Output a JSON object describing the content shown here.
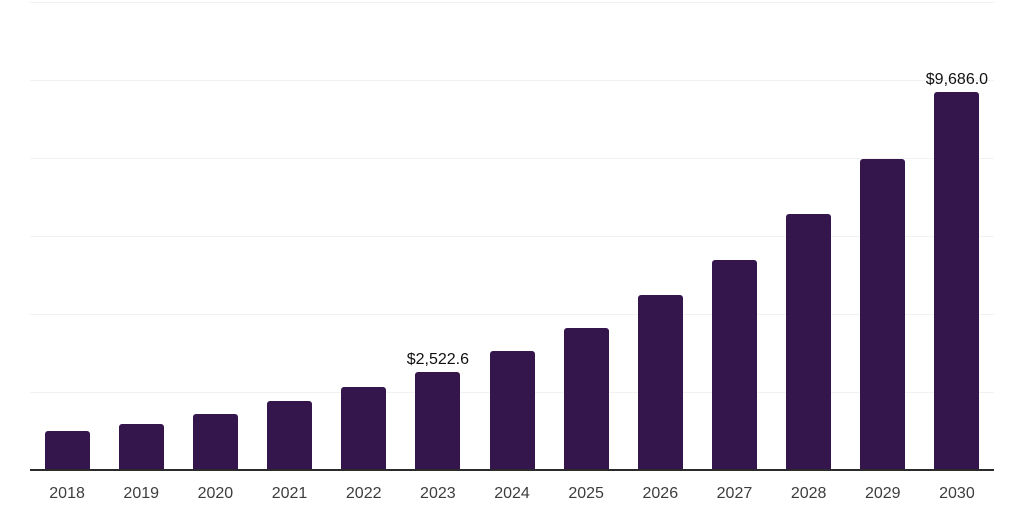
{
  "chart_data": {
    "type": "bar",
    "title": "",
    "xlabel": "",
    "ylabel": "",
    "categories": [
      "2018",
      "2019",
      "2020",
      "2021",
      "2022",
      "2023",
      "2024",
      "2025",
      "2026",
      "2027",
      "2028",
      "2029",
      "2030"
    ],
    "values": [
      1008,
      1172,
      1436,
      1777,
      2120,
      2522.6,
      3051,
      3633,
      4479,
      5384,
      6564,
      7966,
      9686.0
    ],
    "annotations": [
      {
        "category": "2023",
        "text": "$2,522.6"
      },
      {
        "category": "2030",
        "text": "$9,686.0"
      }
    ],
    "ylim": [
      0,
      12000
    ],
    "ytick_step": 2000,
    "grid": "horizontal",
    "legend": "none",
    "colors": {
      "bar": "#34164d",
      "gridline": "#f2f2f2",
      "axis_line": "#2b2b2b",
      "year_label": "#3d3d3d",
      "value_label": "#111111",
      "background": "#ffffff"
    }
  }
}
